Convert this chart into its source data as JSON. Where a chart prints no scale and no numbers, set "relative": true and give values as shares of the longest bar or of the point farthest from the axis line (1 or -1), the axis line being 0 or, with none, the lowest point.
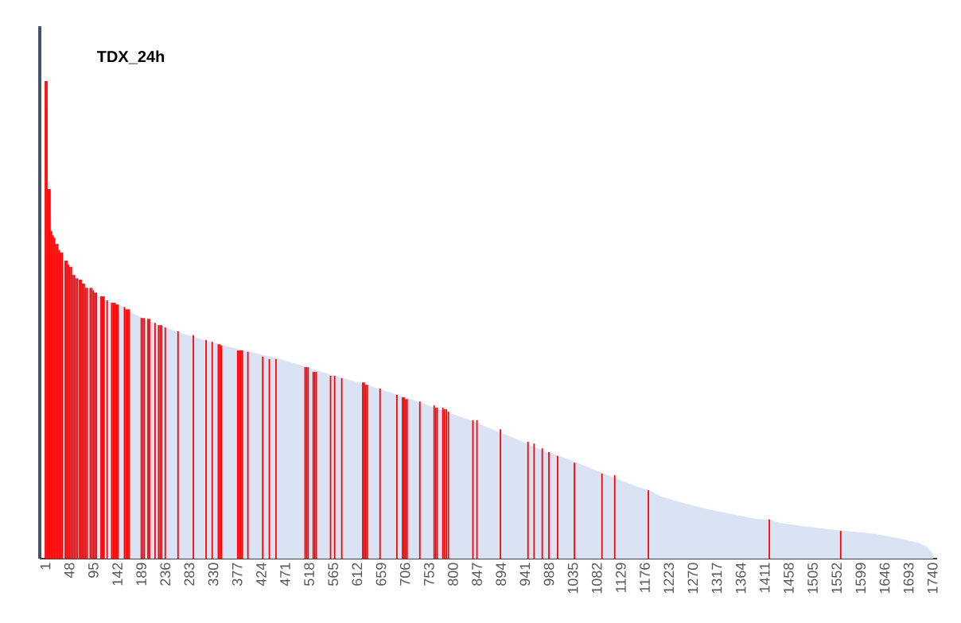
{
  "chart_data": {
    "type": "bar",
    "title": "TDX_24h",
    "relative": true,
    "xlim": [
      -10,
      1749
    ],
    "xticks": [
      1,
      48,
      95,
      142,
      189,
      236,
      283,
      330,
      377,
      424,
      471,
      518,
      565,
      612,
      659,
      706,
      753,
      800,
      847,
      894,
      941,
      988,
      1035,
      1082,
      1129,
      1176,
      1223,
      1270,
      1317,
      1364,
      1411,
      1458,
      1505,
      1552,
      1599,
      1646,
      1693,
      1740
    ],
    "series": [
      {
        "type": "area",
        "color": "#dae3f3",
        "x": [
          1,
          4,
          6,
          9,
          12,
          14,
          21,
          29,
          37,
          52,
          68,
          84,
          99,
          115,
          146,
          169,
          185,
          224,
          271,
          318,
          364,
          411,
          458,
          505,
          552,
          598,
          645,
          692,
          739,
          785,
          832,
          879,
          926,
          973,
          1019,
          1066,
          1113,
          1160,
          1185,
          1207,
          1253,
          1300,
          1347,
          1394,
          1421,
          1440,
          1487,
          1534,
          1581,
          1627,
          1674,
          1713,
          1729,
          1741
        ],
        "values": [
          1.0,
          1.0,
          0.79,
          0.79,
          0.72,
          0.686,
          0.659,
          0.641,
          0.624,
          0.597,
          0.581,
          0.567,
          0.557,
          0.542,
          0.532,
          0.516,
          0.507,
          0.489,
          0.471,
          0.456,
          0.443,
          0.431,
          0.419,
          0.404,
          0.388,
          0.374,
          0.359,
          0.343,
          0.326,
          0.308,
          0.291,
          0.27,
          0.25,
          0.228,
          0.211,
          0.191,
          0.171,
          0.151,
          0.143,
          0.13,
          0.116,
          0.103,
          0.093,
          0.083,
          0.082,
          0.075,
          0.068,
          0.062,
          0.057,
          0.052,
          0.043,
          0.033,
          0.025,
          0.01
        ]
      },
      {
        "color": "#ff0000",
        "x": [
          1,
          4,
          7,
          10,
          13,
          16,
          19,
          22,
          25,
          28,
          31,
          34,
          40,
          43,
          46,
          49,
          52,
          55,
          58,
          61,
          64,
          68,
          71,
          74,
          77,
          80,
          83,
          89,
          92,
          95,
          98,
          101,
          110,
          113,
          116,
          122,
          131,
          134,
          137,
          140,
          143,
          156,
          159,
          162,
          165,
          189,
          192,
          195,
          202,
          205,
          216,
          223,
          226,
          229,
          236,
          261,
          291,
          316,
          328,
          340,
          343,
          346,
          378,
          381,
          384,
          387,
          398,
          427,
          440,
          453,
          510,
          513,
          516,
          526,
          529,
          532,
          560,
          568,
          582,
          623,
          626,
          629,
          632,
          657,
          690,
          701,
          704,
          707,
          710,
          735,
          763,
          766,
          769,
          780,
          783,
          787,
          791,
          839,
          847,
          893,
          947,
          959,
          975,
          988,
          1005,
          1038,
          1092,
          1117,
          1183,
          1420,
          1560
        ],
        "values": [
          1.0,
          1.0,
          0.774,
          0.774,
          0.686,
          0.677,
          0.672,
          0.659,
          0.659,
          0.646,
          0.641,
          0.641,
          0.624,
          0.624,
          0.616,
          0.611,
          0.611,
          0.594,
          0.594,
          0.587,
          0.587,
          0.584,
          0.584,
          0.576,
          0.576,
          0.567,
          0.567,
          0.567,
          0.567,
          0.562,
          0.557,
          0.557,
          0.549,
          0.549,
          0.549,
          0.541,
          0.536,
          0.536,
          0.536,
          0.532,
          0.532,
          0.527,
          0.522,
          0.522,
          0.522,
          0.504,
          0.504,
          0.504,
          0.502,
          0.502,
          0.494,
          0.489,
          0.489,
          0.489,
          0.484,
          0.476,
          0.468,
          0.458,
          0.454,
          0.449,
          0.449,
          0.446,
          0.436,
          0.436,
          0.436,
          0.436,
          0.433,
          0.423,
          0.418,
          0.418,
          0.401,
          0.401,
          0.401,
          0.391,
          0.391,
          0.391,
          0.383,
          0.383,
          0.378,
          0.369,
          0.369,
          0.364,
          0.364,
          0.356,
          0.343,
          0.338,
          0.338,
          0.334,
          0.334,
          0.329,
          0.321,
          0.316,
          0.316,
          0.316,
          0.313,
          0.313,
          0.308,
          0.29,
          0.29,
          0.271,
          0.245,
          0.241,
          0.231,
          0.223,
          0.215,
          0.201,
          0.178,
          0.175,
          0.143,
          0.082,
          0.058
        ]
      }
    ]
  }
}
